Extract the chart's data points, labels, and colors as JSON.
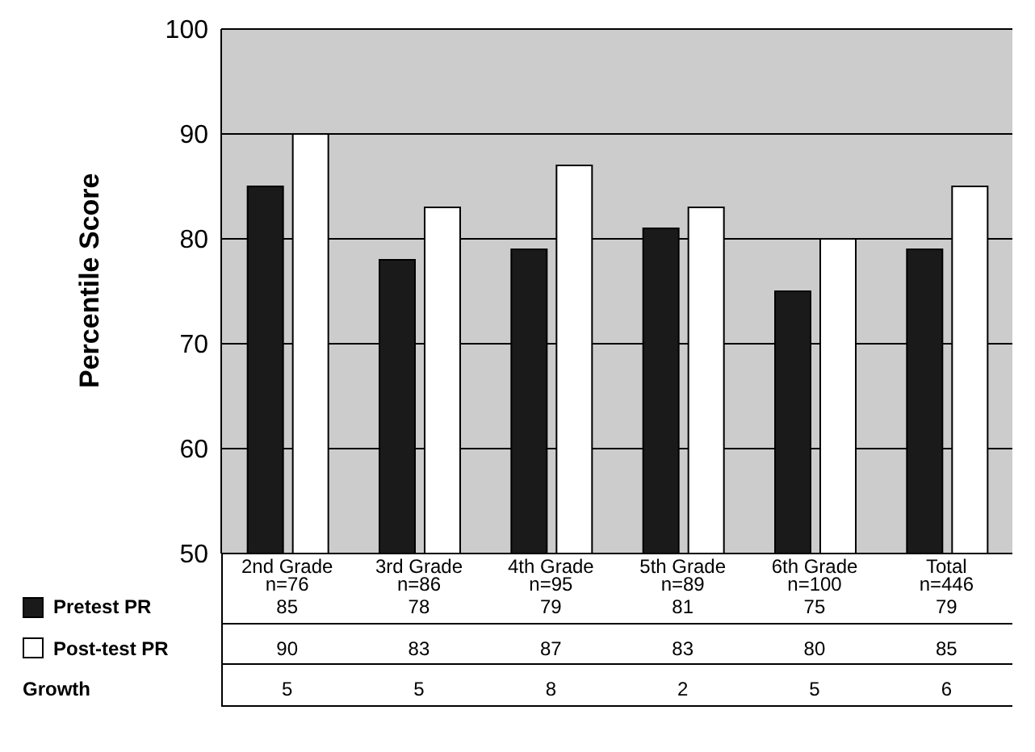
{
  "chart_data": {
    "type": "bar",
    "ylabel": "Percentile Score",
    "categories": [
      "2nd Grade\nn=76",
      "3rd Grade\nn=86",
      "4th Grade\nn=95",
      "5th Grade\nn=89",
      "6th Grade\nn=100",
      "Total\nn=446"
    ],
    "series": [
      {
        "name": "Pretest PR",
        "color": "#1a1a1a",
        "values": [
          85,
          78,
          79,
          81,
          75,
          79
        ]
      },
      {
        "name": "Post-test PR",
        "color": "#ffffff",
        "values": [
          90,
          83,
          87,
          83,
          80,
          85
        ]
      }
    ],
    "annotations": [
      "Growth",
      "5",
      "5",
      "8",
      "2",
      "5",
      "6"
    ],
    "ylim": [
      50,
      100
    ],
    "yticks": [
      50,
      60,
      70,
      80,
      90,
      100
    ],
    "grid": "y",
    "legend": "bottom",
    "data_labels": true
  }
}
